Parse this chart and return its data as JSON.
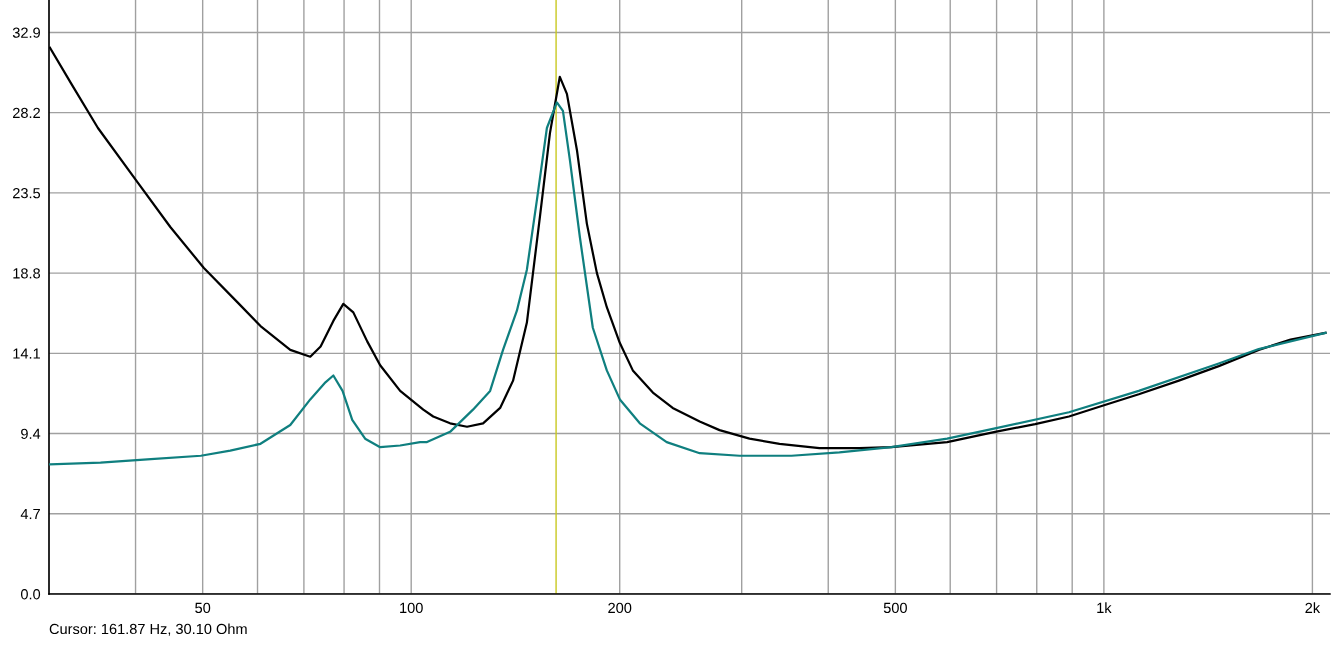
{
  "chart_data": {
    "type": "line",
    "xlim": [
      30,
      2120
    ],
    "ylim": [
      0,
      34.8
    ],
    "log": "x",
    "grid": true,
    "marker": "none",
    "line_style": "solid",
    "xticks": [
      {
        "value": 40,
        "label": null
      },
      50,
      {
        "value": 60,
        "label": null
      },
      {
        "value": 70,
        "label": null
      },
      {
        "value": 80,
        "label": null
      },
      {
        "value": 90,
        "label": null
      },
      100,
      200,
      {
        "value": 300,
        "label": null
      },
      {
        "value": 400,
        "label": null
      },
      500,
      {
        "value": 600,
        "label": null
      },
      {
        "value": 700,
        "label": null
      },
      {
        "value": 800,
        "label": null
      },
      {
        "value": 900,
        "label": null
      },
      {
        "value": 1000,
        "label": "1k"
      },
      {
        "value": 2000,
        "label": "2k"
      }
    ],
    "yticks": [
      {
        "value": 0,
        "label": "0.0"
      },
      4.7,
      9.4,
      14.1,
      18.8,
      23.5,
      28.2,
      32.9
    ],
    "ref_lines": [
      {
        "axis": "x",
        "value": 161.87,
        "color": "#c8c81e"
      }
    ],
    "annotations": [
      "Cursor: 161.87 Hz, 30.10 Ohm"
    ],
    "series": [
      {
        "color": "#000000",
        "x": [
          30.1,
          32.3,
          35.3,
          40.3,
          44.9,
          50.2,
          56.1,
          60.6,
          66.9,
          71.5,
          74.0,
          77.2,
          79.8,
          82.5,
          86.4,
          90.2,
          96.4,
          104.1,
          107.6,
          113.8,
          120.4,
          127.0,
          134.4,
          140.3,
          146.9,
          153.4,
          158.6,
          163.9,
          167.8,
          173.5,
          179.3,
          185.4,
          191.6,
          200.1,
          208.9,
          223.3,
          238.5,
          260.9,
          278.7,
          307.9,
          340.2,
          388.5,
          443.6,
          493.3,
          593.9,
          696.6,
          795.7,
          890.4,
          990.1,
          1123,
          1283,
          1465,
          1673,
          1860,
          2089
        ],
        "values": [
          32.0,
          29.9,
          27.3,
          24.1,
          21.5,
          19.1,
          17.1,
          15.7,
          14.3,
          13.9,
          14.5,
          16.0,
          17.0,
          16.5,
          14.8,
          13.4,
          11.9,
          10.8,
          10.4,
          10.0,
          9.8,
          10.0,
          10.9,
          12.5,
          15.9,
          22.1,
          27.0,
          30.3,
          29.3,
          26.0,
          21.7,
          18.8,
          16.8,
          14.7,
          13.1,
          11.8,
          10.9,
          10.1,
          9.6,
          9.1,
          8.8,
          8.55,
          8.55,
          8.6,
          8.9,
          9.5,
          9.95,
          10.4,
          11.0,
          11.7,
          12.5,
          13.35,
          14.3,
          14.9,
          15.3
        ]
      },
      {
        "color": "#0f7f7f",
        "x": [
          30.1,
          35.6,
          42.1,
          49.7,
          54.8,
          60.6,
          66.9,
          71.5,
          75.2,
          77.2,
          79.6,
          82.2,
          85.8,
          90.2,
          96.4,
          103.0,
          105.4,
          113.8,
          122.8,
          130.0,
          135.7,
          142.1,
          146.9,
          151.9,
          157.0,
          162.3,
          165.6,
          169.5,
          175.2,
          182.9,
          191.6,
          200.1,
          213.8,
          233.8,
          260.9,
          297.9,
          354.0,
          415.1,
          493.3,
          593.9,
          696.6,
          890.4,
          1123,
          1465,
          1673,
          2089
        ],
        "values": [
          7.6,
          7.7,
          7.9,
          8.1,
          8.4,
          8.8,
          9.9,
          11.4,
          12.4,
          12.8,
          11.9,
          10.2,
          9.1,
          8.6,
          8.7,
          8.9,
          8.9,
          9.5,
          10.8,
          11.9,
          14.3,
          16.6,
          19.0,
          23.1,
          27.3,
          28.8,
          28.3,
          25.4,
          20.9,
          15.6,
          13.1,
          11.4,
          10.0,
          8.9,
          8.25,
          8.1,
          8.1,
          8.3,
          8.6,
          9.1,
          9.7,
          10.65,
          11.9,
          13.5,
          14.35,
          15.3
        ]
      }
    ]
  }
}
